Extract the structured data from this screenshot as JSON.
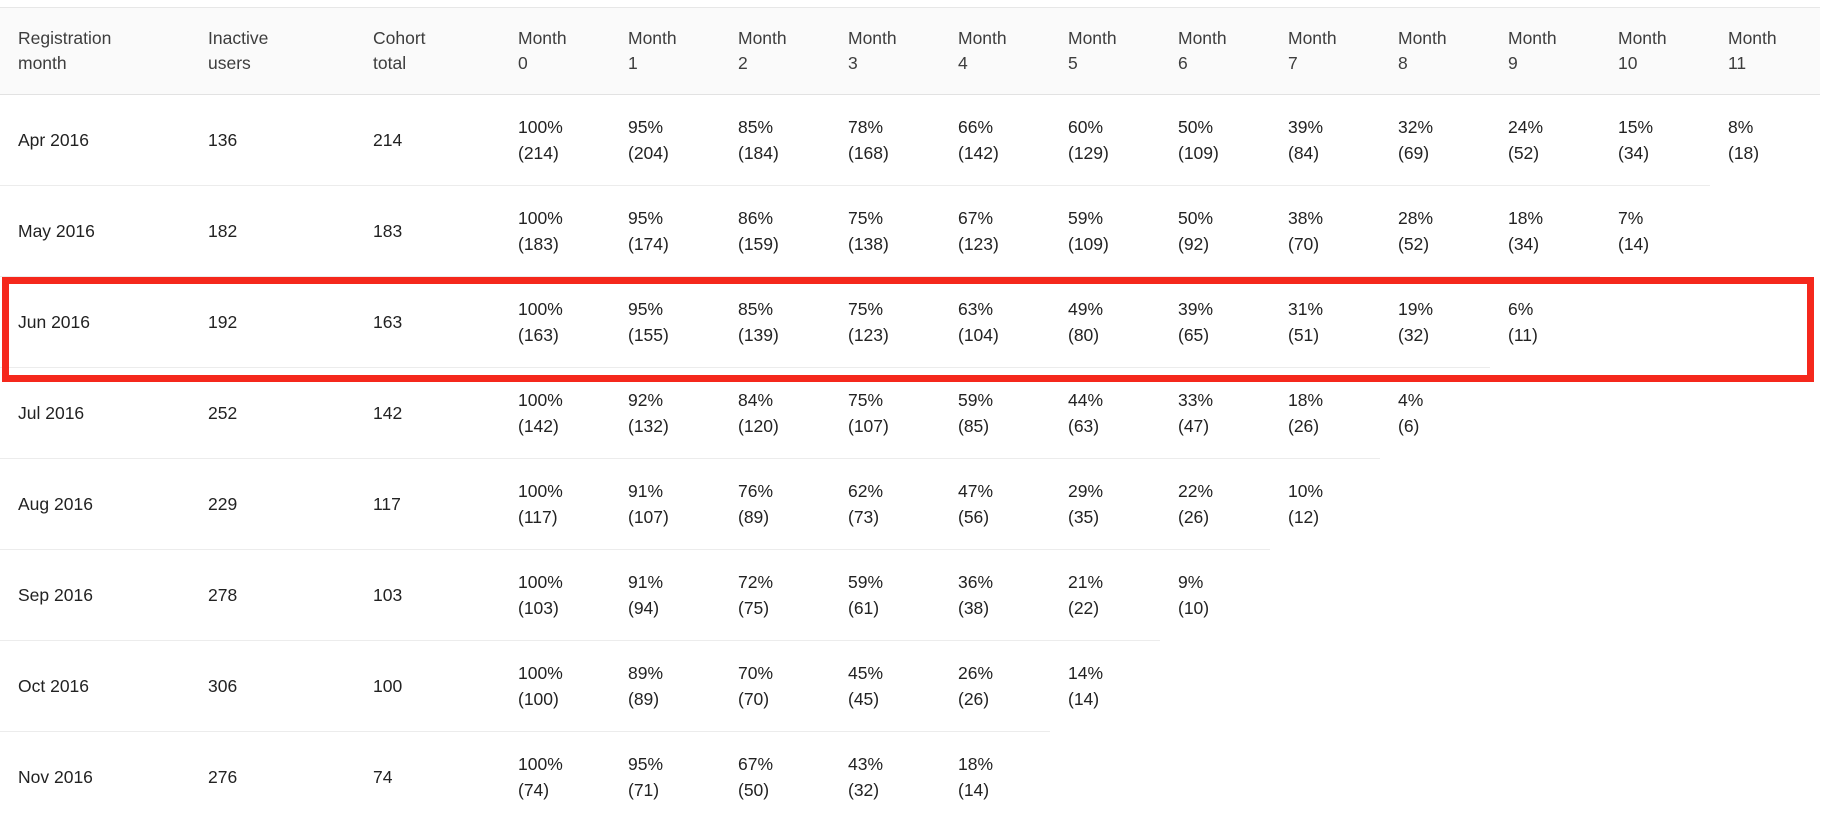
{
  "colors": {
    "highlight_red": "#f5281c",
    "header_bg": "#fafafa",
    "separator": "#ececec",
    "text": "#222222"
  },
  "table": {
    "headers": [
      {
        "l1": "Registration",
        "l2": "month"
      },
      {
        "l1": "Inactive",
        "l2": "users"
      },
      {
        "l1": "Cohort",
        "l2": "total"
      },
      {
        "l1": "Month",
        "l2": "0"
      },
      {
        "l1": "Month",
        "l2": "1"
      },
      {
        "l1": "Month",
        "l2": "2"
      },
      {
        "l1": "Month",
        "l2": "3"
      },
      {
        "l1": "Month",
        "l2": "4"
      },
      {
        "l1": "Month",
        "l2": "5"
      },
      {
        "l1": "Month",
        "l2": "6"
      },
      {
        "l1": "Month",
        "l2": "7"
      },
      {
        "l1": "Month",
        "l2": "8"
      },
      {
        "l1": "Month",
        "l2": "9"
      },
      {
        "l1": "Month",
        "l2": "10"
      },
      {
        "l1": "Month",
        "l2": "11"
      }
    ],
    "rows": [
      {
        "registration_month": "Apr 2016",
        "inactive_users": "136",
        "cohort_total": "214",
        "months": [
          {
            "pct": "100%",
            "count": "(214)"
          },
          {
            "pct": "95%",
            "count": "(204)"
          },
          {
            "pct": "85%",
            "count": "(184)"
          },
          {
            "pct": "78%",
            "count": "(168)"
          },
          {
            "pct": "66%",
            "count": "(142)"
          },
          {
            "pct": "60%",
            "count": "(129)"
          },
          {
            "pct": "50%",
            "count": "(109)"
          },
          {
            "pct": "39%",
            "count": "(84)"
          },
          {
            "pct": "32%",
            "count": "(69)"
          },
          {
            "pct": "24%",
            "count": "(52)"
          },
          {
            "pct": "15%",
            "count": "(34)"
          },
          {
            "pct": "8%",
            "count": "(18)"
          }
        ]
      },
      {
        "registration_month": "May 2016",
        "inactive_users": "182",
        "cohort_total": "183",
        "months": [
          {
            "pct": "100%",
            "count": "(183)"
          },
          {
            "pct": "95%",
            "count": "(174)"
          },
          {
            "pct": "86%",
            "count": "(159)"
          },
          {
            "pct": "75%",
            "count": "(138)"
          },
          {
            "pct": "67%",
            "count": "(123)"
          },
          {
            "pct": "59%",
            "count": "(109)"
          },
          {
            "pct": "50%",
            "count": "(92)"
          },
          {
            "pct": "38%",
            "count": "(70)"
          },
          {
            "pct": "28%",
            "count": "(52)"
          },
          {
            "pct": "18%",
            "count": "(34)"
          },
          {
            "pct": "7%",
            "count": "(14)"
          },
          null
        ]
      },
      {
        "registration_month": "Jun 2016",
        "inactive_users": "192",
        "cohort_total": "163",
        "months": [
          {
            "pct": "100%",
            "count": "(163)"
          },
          {
            "pct": "95%",
            "count": "(155)"
          },
          {
            "pct": "85%",
            "count": "(139)"
          },
          {
            "pct": "75%",
            "count": "(123)"
          },
          {
            "pct": "63%",
            "count": "(104)"
          },
          {
            "pct": "49%",
            "count": "(80)"
          },
          {
            "pct": "39%",
            "count": "(65)"
          },
          {
            "pct": "31%",
            "count": "(51)"
          },
          {
            "pct": "19%",
            "count": "(32)"
          },
          {
            "pct": "6%",
            "count": "(11)"
          },
          null,
          null
        ]
      },
      {
        "registration_month": "Jul 2016",
        "inactive_users": "252",
        "cohort_total": "142",
        "months": [
          {
            "pct": "100%",
            "count": "(142)"
          },
          {
            "pct": "92%",
            "count": "(132)"
          },
          {
            "pct": "84%",
            "count": "(120)"
          },
          {
            "pct": "75%",
            "count": "(107)"
          },
          {
            "pct": "59%",
            "count": "(85)"
          },
          {
            "pct": "44%",
            "count": "(63)"
          },
          {
            "pct": "33%",
            "count": "(47)"
          },
          {
            "pct": "18%",
            "count": "(26)"
          },
          {
            "pct": "4%",
            "count": "(6)"
          },
          null,
          null,
          null
        ]
      },
      {
        "registration_month": "Aug 2016",
        "inactive_users": "229",
        "cohort_total": "117",
        "months": [
          {
            "pct": "100%",
            "count": "(117)"
          },
          {
            "pct": "91%",
            "count": "(107)"
          },
          {
            "pct": "76%",
            "count": "(89)"
          },
          {
            "pct": "62%",
            "count": "(73)"
          },
          {
            "pct": "47%",
            "count": "(56)"
          },
          {
            "pct": "29%",
            "count": "(35)"
          },
          {
            "pct": "22%",
            "count": "(26)"
          },
          {
            "pct": "10%",
            "count": "(12)"
          },
          null,
          null,
          null,
          null
        ]
      },
      {
        "registration_month": "Sep 2016",
        "inactive_users": "278",
        "cohort_total": "103",
        "months": [
          {
            "pct": "100%",
            "count": "(103)"
          },
          {
            "pct": "91%",
            "count": "(94)"
          },
          {
            "pct": "72%",
            "count": "(75)"
          },
          {
            "pct": "59%",
            "count": "(61)"
          },
          {
            "pct": "36%",
            "count": "(38)"
          },
          {
            "pct": "21%",
            "count": "(22)"
          },
          {
            "pct": "9%",
            "count": "(10)"
          },
          null,
          null,
          null,
          null,
          null
        ]
      },
      {
        "registration_month": "Oct 2016",
        "inactive_users": "306",
        "cohort_total": "100",
        "months": [
          {
            "pct": "100%",
            "count": "(100)"
          },
          {
            "pct": "89%",
            "count": "(89)"
          },
          {
            "pct": "70%",
            "count": "(70)"
          },
          {
            "pct": "45%",
            "count": "(45)"
          },
          {
            "pct": "26%",
            "count": "(26)"
          },
          {
            "pct": "14%",
            "count": "(14)"
          },
          null,
          null,
          null,
          null,
          null,
          null
        ]
      },
      {
        "registration_month": "Nov 2016",
        "inactive_users": "276",
        "cohort_total": "74",
        "months": [
          {
            "pct": "100%",
            "count": "(74)"
          },
          {
            "pct": "95%",
            "count": "(71)"
          },
          {
            "pct": "67%",
            "count": "(50)"
          },
          {
            "pct": "43%",
            "count": "(32)"
          },
          {
            "pct": "18%",
            "count": "(14)"
          },
          null,
          null,
          null,
          null,
          null,
          null,
          null
        ]
      }
    ]
  },
  "highlight": {
    "row_label": "Jun 2016",
    "color": "#f5281c"
  },
  "chart_data": {
    "type": "table",
    "columns": [
      "Registration month",
      "Inactive users",
      "Cohort total",
      "Month 0",
      "Month 1",
      "Month 2",
      "Month 3",
      "Month 4",
      "Month 5",
      "Month 6",
      "Month 7",
      "Month 8",
      "Month 9",
      "Month 10",
      "Month 11"
    ],
    "rows": [
      {
        "registration_month": "Apr 2016",
        "inactive_users": 136,
        "cohort_total": 214,
        "retention_pct": [
          100,
          95,
          85,
          78,
          66,
          60,
          50,
          39,
          32,
          24,
          15,
          8
        ],
        "retention_count": [
          214,
          204,
          184,
          168,
          142,
          129,
          109,
          84,
          69,
          52,
          34,
          18
        ]
      },
      {
        "registration_month": "May 2016",
        "inactive_users": 182,
        "cohort_total": 183,
        "retention_pct": [
          100,
          95,
          86,
          75,
          67,
          59,
          50,
          38,
          28,
          18,
          7
        ],
        "retention_count": [
          183,
          174,
          159,
          138,
          123,
          109,
          92,
          70,
          52,
          34,
          14
        ]
      },
      {
        "registration_month": "Jun 2016",
        "inactive_users": 192,
        "cohort_total": 163,
        "retention_pct": [
          100,
          95,
          85,
          75,
          63,
          49,
          39,
          31,
          19,
          6
        ],
        "retention_count": [
          163,
          155,
          139,
          123,
          104,
          80,
          65,
          51,
          32,
          11
        ]
      },
      {
        "registration_month": "Jul 2016",
        "inactive_users": 252,
        "cohort_total": 142,
        "retention_pct": [
          100,
          92,
          84,
          75,
          59,
          44,
          33,
          18,
          4
        ],
        "retention_count": [
          142,
          132,
          120,
          107,
          85,
          63,
          47,
          26,
          6
        ]
      },
      {
        "registration_month": "Aug 2016",
        "inactive_users": 229,
        "cohort_total": 117,
        "retention_pct": [
          100,
          91,
          76,
          62,
          47,
          29,
          22,
          10
        ],
        "retention_count": [
          117,
          107,
          89,
          73,
          56,
          35,
          26,
          12
        ]
      },
      {
        "registration_month": "Sep 2016",
        "inactive_users": 278,
        "cohort_total": 103,
        "retention_pct": [
          100,
          91,
          72,
          59,
          36,
          21,
          9
        ],
        "retention_count": [
          103,
          94,
          75,
          61,
          38,
          22,
          10
        ]
      },
      {
        "registration_month": "Oct 2016",
        "inactive_users": 306,
        "cohort_total": 100,
        "retention_pct": [
          100,
          89,
          70,
          45,
          26,
          14
        ],
        "retention_count": [
          100,
          89,
          70,
          45,
          26,
          14
        ]
      },
      {
        "registration_month": "Nov 2016",
        "inactive_users": 276,
        "cohort_total": 74,
        "retention_pct": [
          100,
          95,
          67,
          43,
          18
        ],
        "retention_count": [
          74,
          71,
          50,
          32,
          14
        ]
      }
    ],
    "annotation": {
      "highlighted_row": "Jun 2016",
      "highlight_color": "#f5281c"
    }
  }
}
